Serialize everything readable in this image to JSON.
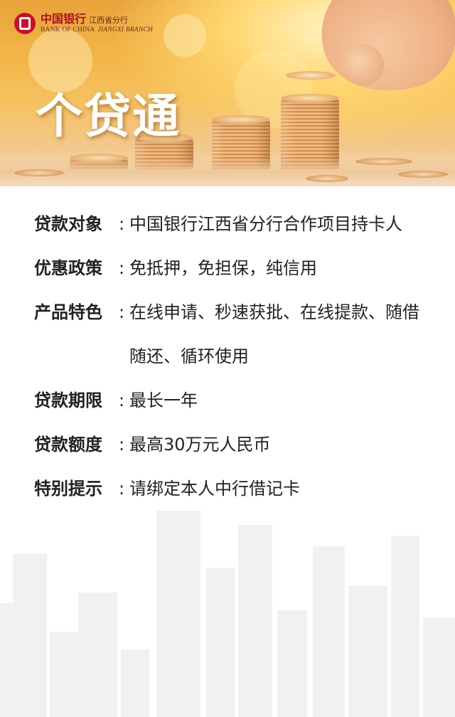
{
  "header": {
    "logo_cn": "中国银行",
    "branch_cn": "江西省分行",
    "logo_en": "BANK OF CHINA",
    "branch_en": "JIANGXI BRANCH",
    "title": "个贷通",
    "brand_color": "#c8102e"
  },
  "details": {
    "separator": ":",
    "items": [
      {
        "label": "贷款对象",
        "value": "中国银行江西省分行合作项目持卡人"
      },
      {
        "label": "优惠政策",
        "value": "免抵押，免担保，纯信用"
      },
      {
        "label": "产品特色",
        "value": "在线申请、秒速获批、在线提款、随借随还、循环使用"
      },
      {
        "label": "贷款期限",
        "value": "最长一年"
      },
      {
        "label": "贷款额度",
        "value": "最高30万元人民币"
      },
      {
        "label": "特别提示",
        "value": "请绑定本人中行借记卡"
      }
    ]
  }
}
